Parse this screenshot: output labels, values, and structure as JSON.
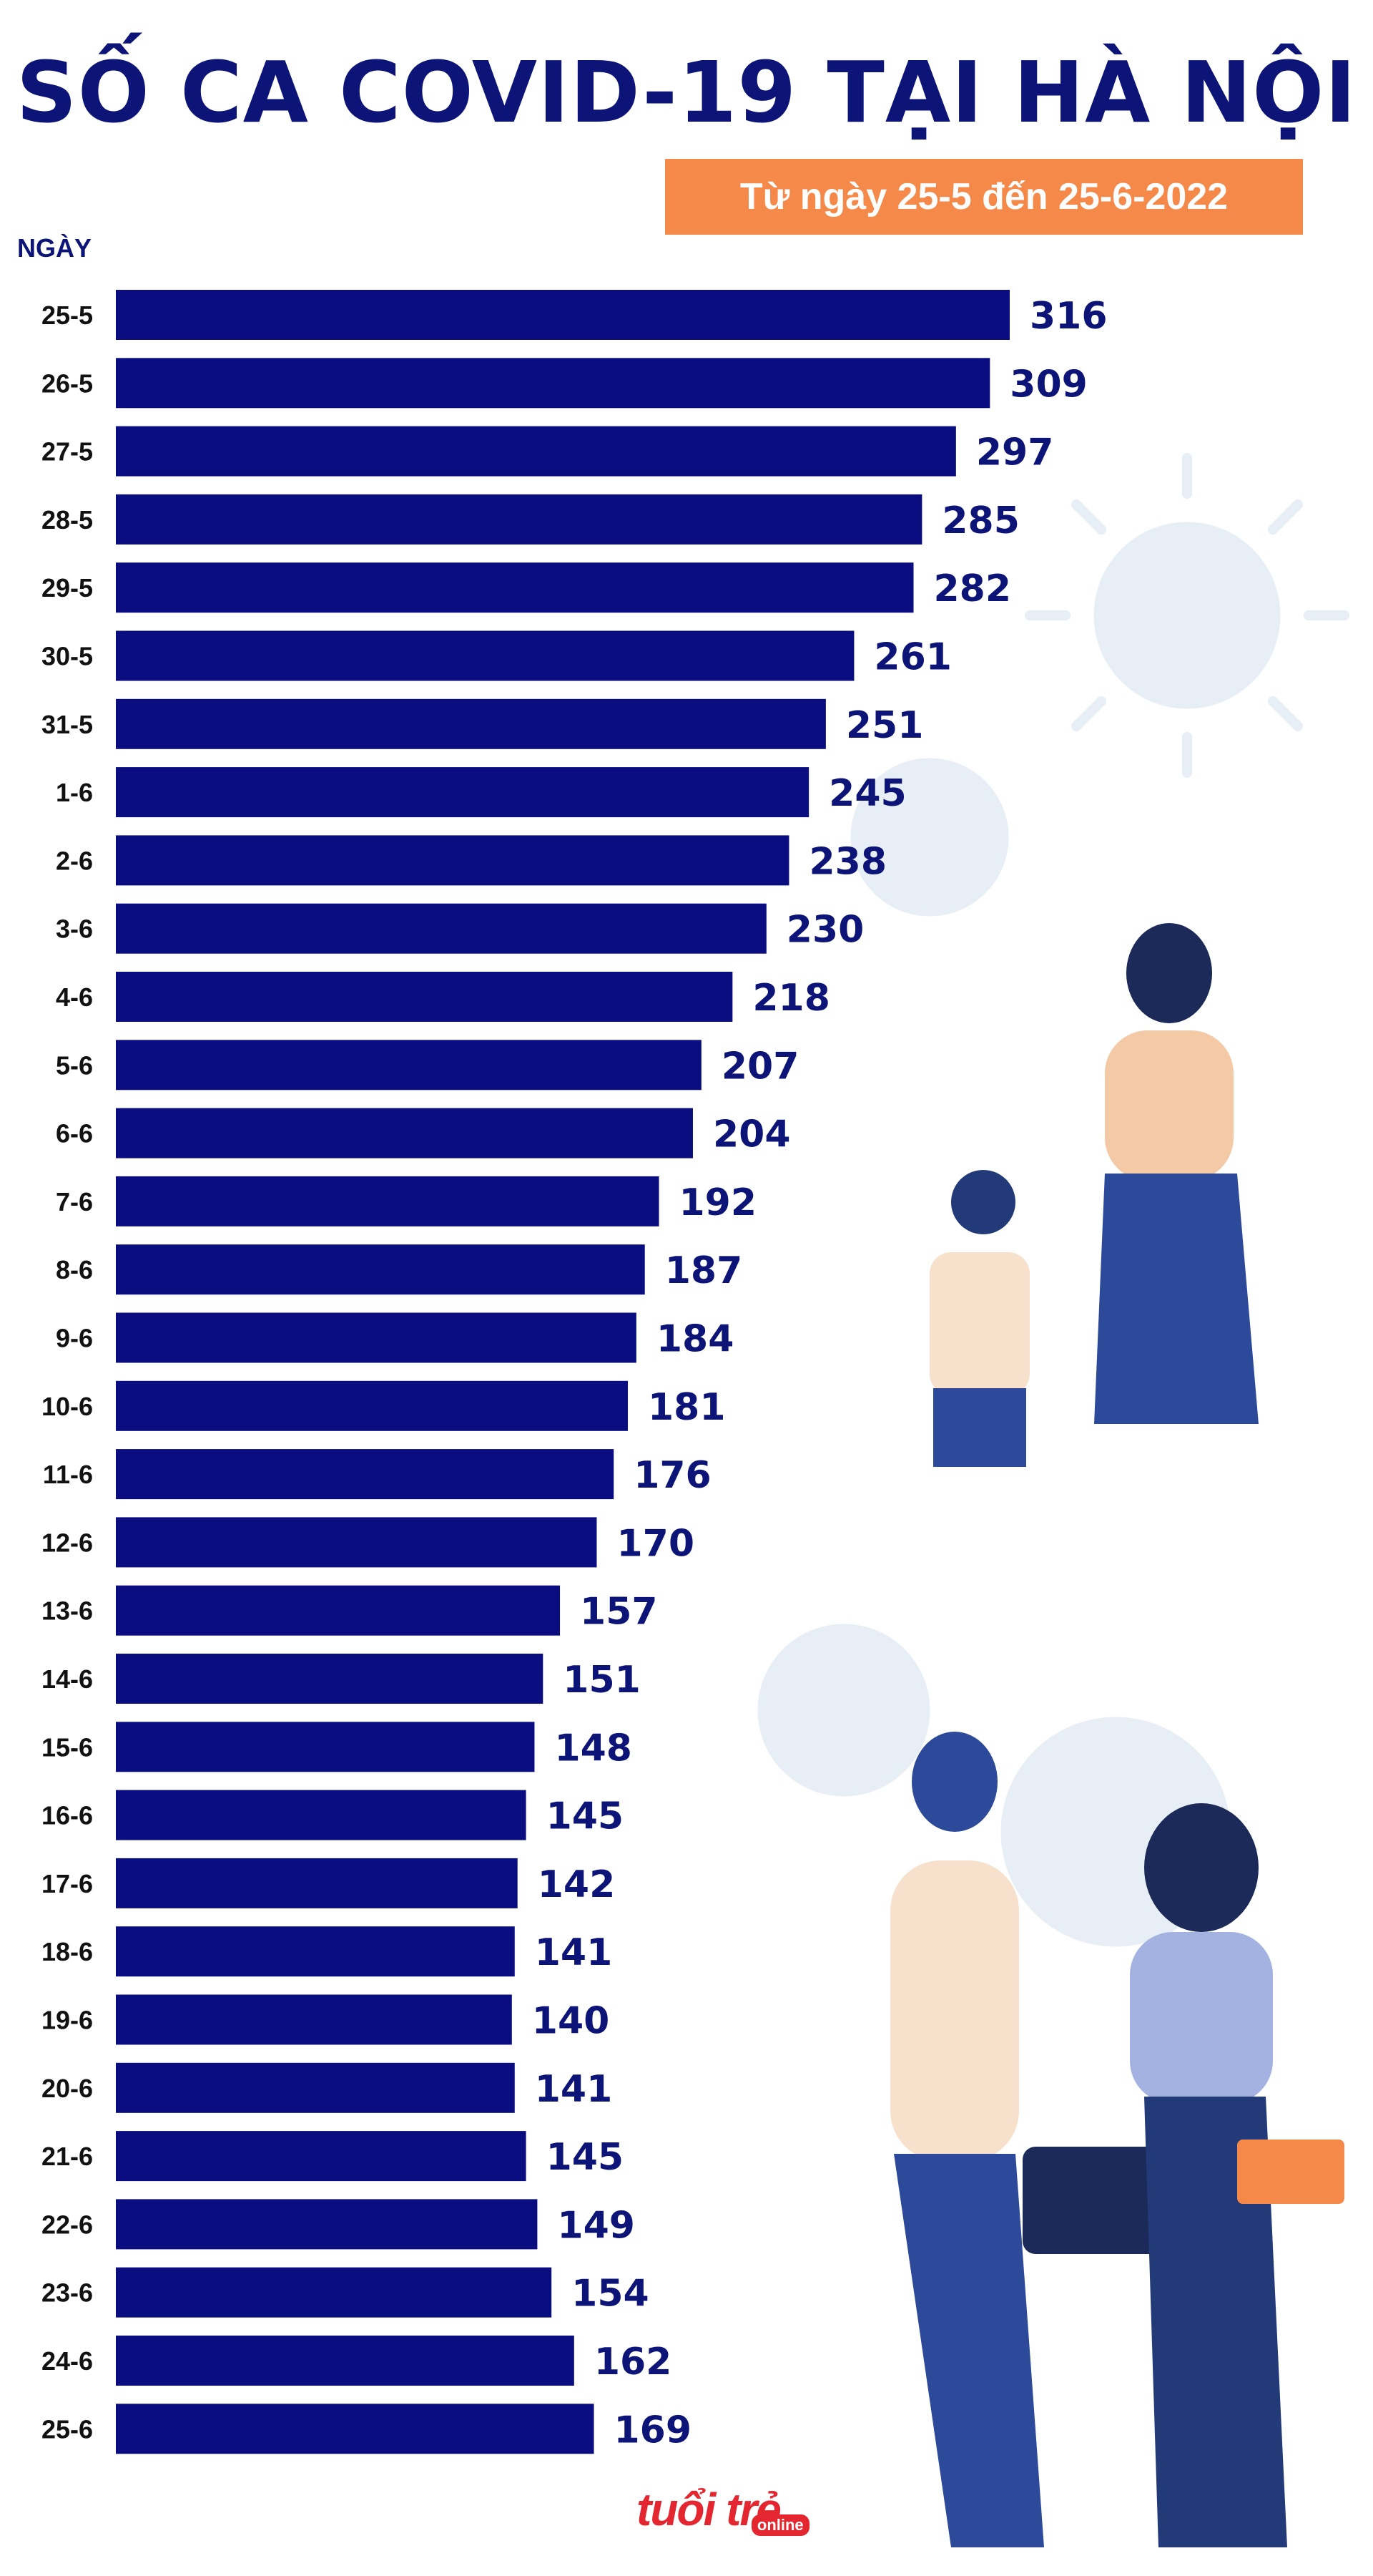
{
  "header": {
    "title": "SỐ CA COVID-19 TẠI HÀ NỘI",
    "subtitle": "Từ ngày 25-5 đến 25-6-2022",
    "axis_label": "NGÀY"
  },
  "colors": {
    "bar": "#0a0d80",
    "title": "#0d1478",
    "subtitle_bg": "#f4894a"
  },
  "logo": {
    "main": "tuổi trẻ",
    "sub": "online"
  },
  "chart_data": {
    "type": "bar",
    "orientation": "horizontal",
    "title": "SỐ CA COVID-19 TẠI HÀ NỘI",
    "subtitle": "Từ ngày 25-5 đến 25-6-2022",
    "ylabel": "NGÀY",
    "xlabel": "",
    "xlim": [
      0,
      316
    ],
    "grid": false,
    "categories": [
      "25-5",
      "26-5",
      "27-5",
      "28-5",
      "29-5",
      "30-5",
      "31-5",
      "1-6",
      "2-6",
      "3-6",
      "4-6",
      "5-6",
      "6-6",
      "7-6",
      "8-6",
      "9-6",
      "10-6",
      "11-6",
      "12-6",
      "13-6",
      "14-6",
      "15-6",
      "16-6",
      "17-6",
      "18-6",
      "19-6",
      "20-6",
      "21-6",
      "22-6",
      "23-6",
      "24-6",
      "25-6"
    ],
    "values": [
      316,
      309,
      297,
      285,
      282,
      261,
      251,
      245,
      238,
      230,
      218,
      207,
      204,
      192,
      187,
      184,
      181,
      176,
      170,
      157,
      151,
      148,
      145,
      142,
      141,
      140,
      141,
      145,
      149,
      154,
      162,
      169
    ],
    "data_labels": [
      "316",
      "309",
      "297",
      "285",
      "282",
      "261",
      "251",
      "245",
      "238",
      "230",
      "218",
      "207",
      "204",
      "192",
      "187",
      "184",
      "181",
      "176",
      "170",
      "157",
      "151",
      "148",
      "145",
      "142",
      "141",
      "140",
      "141",
      "145",
      "149",
      "154",
      "162",
      "169"
    ]
  }
}
